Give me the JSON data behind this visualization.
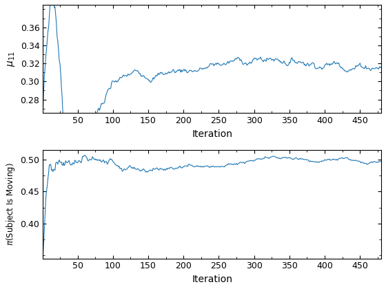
{
  "line_color": "#1f77b4",
  "line_width": 0.8,
  "xlabel": "Iteration",
  "ylabel1": "$\\mu_{11}$",
  "ylabel2": "$\\pi$(Subject Is Moving)",
  "xlim": [
    1,
    480
  ],
  "ylim1": [
    0.265,
    0.385
  ],
  "ylim2": [
    0.345,
    0.515
  ],
  "yticks1": [
    0.28,
    0.3,
    0.32,
    0.34,
    0.36
  ],
  "yticks2": [
    0.4,
    0.45,
    0.5
  ],
  "xticks": [
    50,
    100,
    150,
    200,
    250,
    300,
    350,
    400,
    450
  ],
  "n_iter": 480,
  "background_color": "#ffffff"
}
